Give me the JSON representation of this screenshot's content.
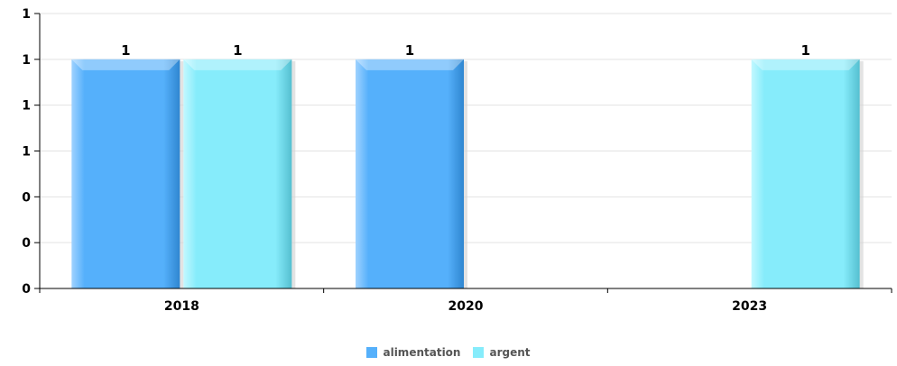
{
  "chart_data": {
    "type": "bar",
    "categories": [
      "2018",
      "2020",
      "2023"
    ],
    "series": [
      {
        "name": "alimentation",
        "color": "#55b0fb",
        "values": [
          1,
          1,
          null
        ]
      },
      {
        "name": "argent",
        "color": "#86ecfb",
        "values": [
          1,
          null,
          1
        ]
      }
    ],
    "y_tick_labels": [
      "0",
      "0",
      "0",
      "1",
      "1",
      "1",
      "1"
    ],
    "ylim": [
      0,
      1.2
    ],
    "y_ticks": [
      0,
      0.2,
      0.4,
      0.6,
      0.8,
      1.0,
      1.2
    ],
    "grid": true,
    "legend_position": "bottom-center",
    "title": "",
    "xlabel": "",
    "ylabel": ""
  }
}
